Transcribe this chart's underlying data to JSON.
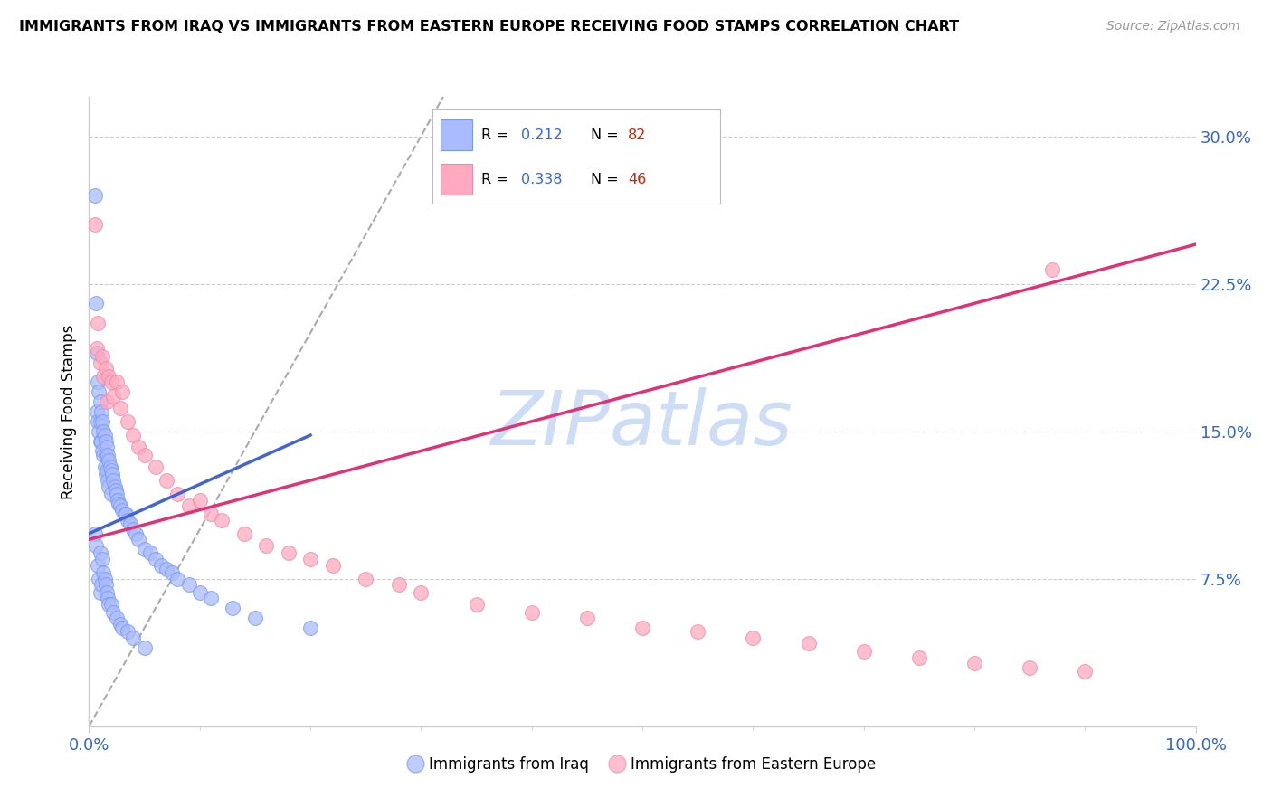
{
  "title": "IMMIGRANTS FROM IRAQ VS IMMIGRANTS FROM EASTERN EUROPE RECEIVING FOOD STAMPS CORRELATION CHART",
  "source": "Source: ZipAtlas.com",
  "ylabel": "Receiving Food Stamps",
  "ytick_labels": [
    "7.5%",
    "15.0%",
    "22.5%",
    "30.0%"
  ],
  "ytick_vals": [
    0.075,
    0.15,
    0.225,
    0.3
  ],
  "xtick_labels": [
    "0.0%",
    "100.0%"
  ],
  "xtick_vals": [
    0.0,
    1.0
  ],
  "R_iraq": 0.212,
  "N_iraq": 82,
  "R_ee": 0.338,
  "N_ee": 46,
  "color_iraq_fill": "#aabbff",
  "color_iraq_edge": "#7799ee",
  "color_ee_fill": "#ffaac0",
  "color_ee_edge": "#ee88aa",
  "color_iraq_line": "#4466cc",
  "color_ee_line": "#dd3377",
  "color_diag": "#aaaaaa",
  "watermark_text": "ZIPatlas",
  "watermark_color": "#ccddf5",
  "legend_iraq_label": "Immigrants from Iraq",
  "legend_ee_label": "Immigrants from Eastern Europe",
  "xlim": [
    0.0,
    1.0
  ],
  "ylim": [
    0.0,
    0.32
  ],
  "iraq_line_x": [
    0.0,
    0.2
  ],
  "iraq_line_y": [
    0.098,
    0.148
  ],
  "ee_line_x": [
    0.0,
    1.0
  ],
  "ee_line_y": [
    0.095,
    0.245
  ],
  "diag_line_x": [
    0.0,
    0.32
  ],
  "diag_line_y": [
    0.0,
    0.32
  ],
  "iraq_x": [
    0.005,
    0.006,
    0.007,
    0.007,
    0.008,
    0.008,
    0.009,
    0.009,
    0.01,
    0.01,
    0.01,
    0.011,
    0.011,
    0.012,
    0.012,
    0.013,
    0.013,
    0.014,
    0.014,
    0.015,
    0.015,
    0.015,
    0.016,
    0.016,
    0.017,
    0.017,
    0.018,
    0.018,
    0.019,
    0.02,
    0.02,
    0.021,
    0.022,
    0.023,
    0.024,
    0.025,
    0.026,
    0.027,
    0.028,
    0.03,
    0.032,
    0.033,
    0.035,
    0.037,
    0.04,
    0.042,
    0.045,
    0.05,
    0.055,
    0.06,
    0.065,
    0.07,
    0.075,
    0.08,
    0.09,
    0.1,
    0.11,
    0.13,
    0.15,
    0.2,
    0.005,
    0.006,
    0.008,
    0.009,
    0.01,
    0.01,
    0.011,
    0.012,
    0.013,
    0.014,
    0.015,
    0.016,
    0.017,
    0.018,
    0.02,
    0.022,
    0.025,
    0.028,
    0.03,
    0.035,
    0.04,
    0.05
  ],
  "iraq_y": [
    0.27,
    0.215,
    0.19,
    0.16,
    0.175,
    0.155,
    0.17,
    0.15,
    0.165,
    0.155,
    0.145,
    0.16,
    0.145,
    0.155,
    0.14,
    0.15,
    0.138,
    0.148,
    0.132,
    0.145,
    0.138,
    0.128,
    0.142,
    0.13,
    0.138,
    0.125,
    0.135,
    0.122,
    0.132,
    0.13,
    0.118,
    0.128,
    0.125,
    0.122,
    0.12,
    0.118,
    0.115,
    0.113,
    0.112,
    0.11,
    0.108,
    0.108,
    0.105,
    0.103,
    0.1,
    0.098,
    0.095,
    0.09,
    0.088,
    0.085,
    0.082,
    0.08,
    0.078,
    0.075,
    0.072,
    0.068,
    0.065,
    0.06,
    0.055,
    0.05,
    0.098,
    0.092,
    0.082,
    0.075,
    0.088,
    0.068,
    0.072,
    0.085,
    0.078,
    0.075,
    0.072,
    0.068,
    0.065,
    0.062,
    0.062,
    0.058,
    0.055,
    0.052,
    0.05,
    0.048,
    0.045,
    0.04
  ],
  "ee_x": [
    0.005,
    0.007,
    0.008,
    0.01,
    0.012,
    0.013,
    0.015,
    0.016,
    0.018,
    0.02,
    0.022,
    0.025,
    0.028,
    0.03,
    0.035,
    0.04,
    0.045,
    0.05,
    0.06,
    0.07,
    0.08,
    0.09,
    0.1,
    0.11,
    0.12,
    0.14,
    0.16,
    0.18,
    0.2,
    0.22,
    0.25,
    0.28,
    0.3,
    0.35,
    0.4,
    0.45,
    0.5,
    0.55,
    0.6,
    0.65,
    0.7,
    0.75,
    0.8,
    0.85,
    0.9,
    0.87
  ],
  "ee_y": [
    0.255,
    0.192,
    0.205,
    0.185,
    0.188,
    0.178,
    0.182,
    0.165,
    0.178,
    0.175,
    0.168,
    0.175,
    0.162,
    0.17,
    0.155,
    0.148,
    0.142,
    0.138,
    0.132,
    0.125,
    0.118,
    0.112,
    0.115,
    0.108,
    0.105,
    0.098,
    0.092,
    0.088,
    0.085,
    0.082,
    0.075,
    0.072,
    0.068,
    0.062,
    0.058,
    0.055,
    0.05,
    0.048,
    0.045,
    0.042,
    0.038,
    0.035,
    0.032,
    0.03,
    0.028,
    0.232
  ]
}
